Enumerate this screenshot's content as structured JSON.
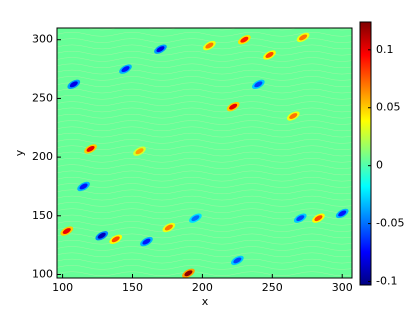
{
  "chart_data": {
    "type": "contour",
    "xlabel": "x",
    "ylabel": "y",
    "xlim": [
      96,
      307
    ],
    "xticks": [
      100,
      150,
      200,
      250,
      300
    ],
    "ylim": [
      97,
      310
    ],
    "yticks": [
      100,
      150,
      200,
      250,
      300
    ],
    "colormap": "jet",
    "clim": [
      -0.103,
      0.124
    ],
    "cticks": [
      0.1,
      0.05,
      0,
      -0.05,
      -0.1
    ],
    "background_value": 0.005,
    "x": [
      190,
      120,
      222,
      230,
      283,
      248,
      103,
      138,
      176,
      265,
      155,
      205,
      272,
      108,
      145,
      170,
      128,
      160,
      225,
      300,
      240,
      115,
      270,
      195
    ],
    "y": [
      101,
      207,
      243,
      300,
      148,
      287,
      137,
      130,
      140,
      235,
      205,
      295,
      302,
      262,
      275,
      292,
      133,
      128,
      112,
      152,
      262,
      175,
      148,
      148
    ],
    "values": [
      0.12,
      0.1,
      0.1,
      0.09,
      0.08,
      0.08,
      0.1,
      0.08,
      0.07,
      0.07,
      0.06,
      0.07,
      0.07,
      -0.08,
      -0.07,
      -0.08,
      -0.09,
      -0.07,
      -0.06,
      -0.07,
      -0.06,
      -0.07,
      -0.06,
      -0.05
    ]
  }
}
